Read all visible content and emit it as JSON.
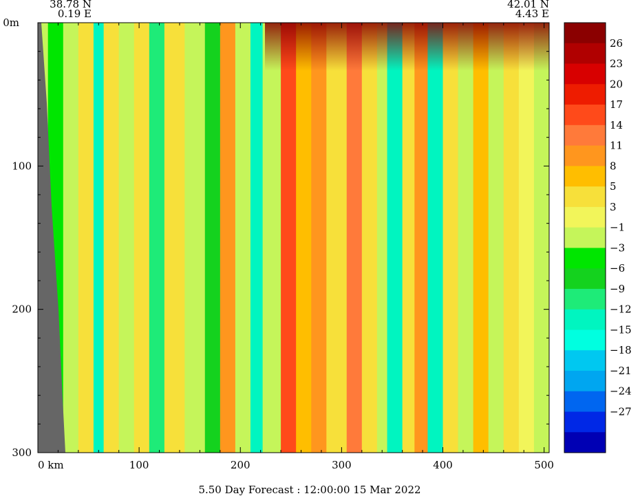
{
  "chart_data": {
    "type": "heatmap",
    "title": "",
    "xlabel": "",
    "ylabel": "",
    "corner_left": {
      "lat": "38.78 N",
      "lon": "0.19 E"
    },
    "corner_right": {
      "lat": "42.01 N",
      "lon": "4.43 E"
    },
    "footer": "5.50 Day Forecast : 12:00:00  15 Mar 2022",
    "x_axis": {
      "unit": "km",
      "range": [
        0,
        505
      ],
      "ticks": [
        0,
        100,
        200,
        300,
        400,
        500
      ],
      "tick_labels": [
        "0  km",
        "100",
        "200",
        "300",
        "400",
        "500"
      ]
    },
    "y_axis": {
      "unit": "m",
      "range": [
        0,
        300
      ],
      "inverted": true,
      "ticks": [
        0,
        100,
        200,
        300
      ],
      "tick_labels": [
        "0m",
        "100",
        "200",
        "300"
      ]
    },
    "colorbar": {
      "labels": [
        "26",
        "23",
        "20",
        "17",
        "14",
        "11",
        "8",
        "5",
        "3",
        "−1",
        "−3",
        "−6",
        "−9",
        "−12",
        "−15",
        "−18",
        "−21",
        "−24",
        "−27"
      ],
      "colors": [
        "#8b0000",
        "#b00000",
        "#d80000",
        "#ee1c00",
        "#ff4a1a",
        "#ff7a3a",
        "#ff961e",
        "#ffbe00",
        "#f7e03a",
        "#f2f55a",
        "#c5f55a",
        "#00e600",
        "#14d21e",
        "#1eeb78",
        "#00f5c0",
        "#00ffe0",
        "#00c8f0",
        "#00a6f0",
        "#0066f0",
        "#0028e6",
        "#0000b4"
      ]
    },
    "land_mask_color": "#666666",
    "bands": [
      {
        "x": 0,
        "v": -3
      },
      {
        "x": 10,
        "v": -6
      },
      {
        "x": 25,
        "v": -3
      },
      {
        "x": 40,
        "v": 3
      },
      {
        "x": 55,
        "v": -15
      },
      {
        "x": 65,
        "v": 3
      },
      {
        "x": 80,
        "v": -3
      },
      {
        "x": 95,
        "v": 3
      },
      {
        "x": 110,
        "v": -12
      },
      {
        "x": 125,
        "v": 3
      },
      {
        "x": 145,
        "v": -3
      },
      {
        "x": 165,
        "v": -9
      },
      {
        "x": 180,
        "v": 8
      },
      {
        "x": 195,
        "v": -3
      },
      {
        "x": 210,
        "v": -15
      },
      {
        "x": 222,
        "v": -3
      },
      {
        "x": 240,
        "v": 14
      },
      {
        "x": 255,
        "v": 5
      },
      {
        "x": 270,
        "v": 8
      },
      {
        "x": 285,
        "v": 3
      },
      {
        "x": 305,
        "v": 11
      },
      {
        "x": 320,
        "v": 3
      },
      {
        "x": 335,
        "v": -3
      },
      {
        "x": 345,
        "v": -15
      },
      {
        "x": 360,
        "v": 3
      },
      {
        "x": 372,
        "v": 8
      },
      {
        "x": 385,
        "v": -15
      },
      {
        "x": 400,
        "v": 3
      },
      {
        "x": 415,
        "v": -3
      },
      {
        "x": 430,
        "v": 5
      },
      {
        "x": 445,
        "v": -3
      },
      {
        "x": 460,
        "v": 3
      },
      {
        "x": 475,
        "v": -1
      },
      {
        "x": 490,
        "v": -3
      },
      {
        "x": 505,
        "v": -1
      }
    ]
  }
}
